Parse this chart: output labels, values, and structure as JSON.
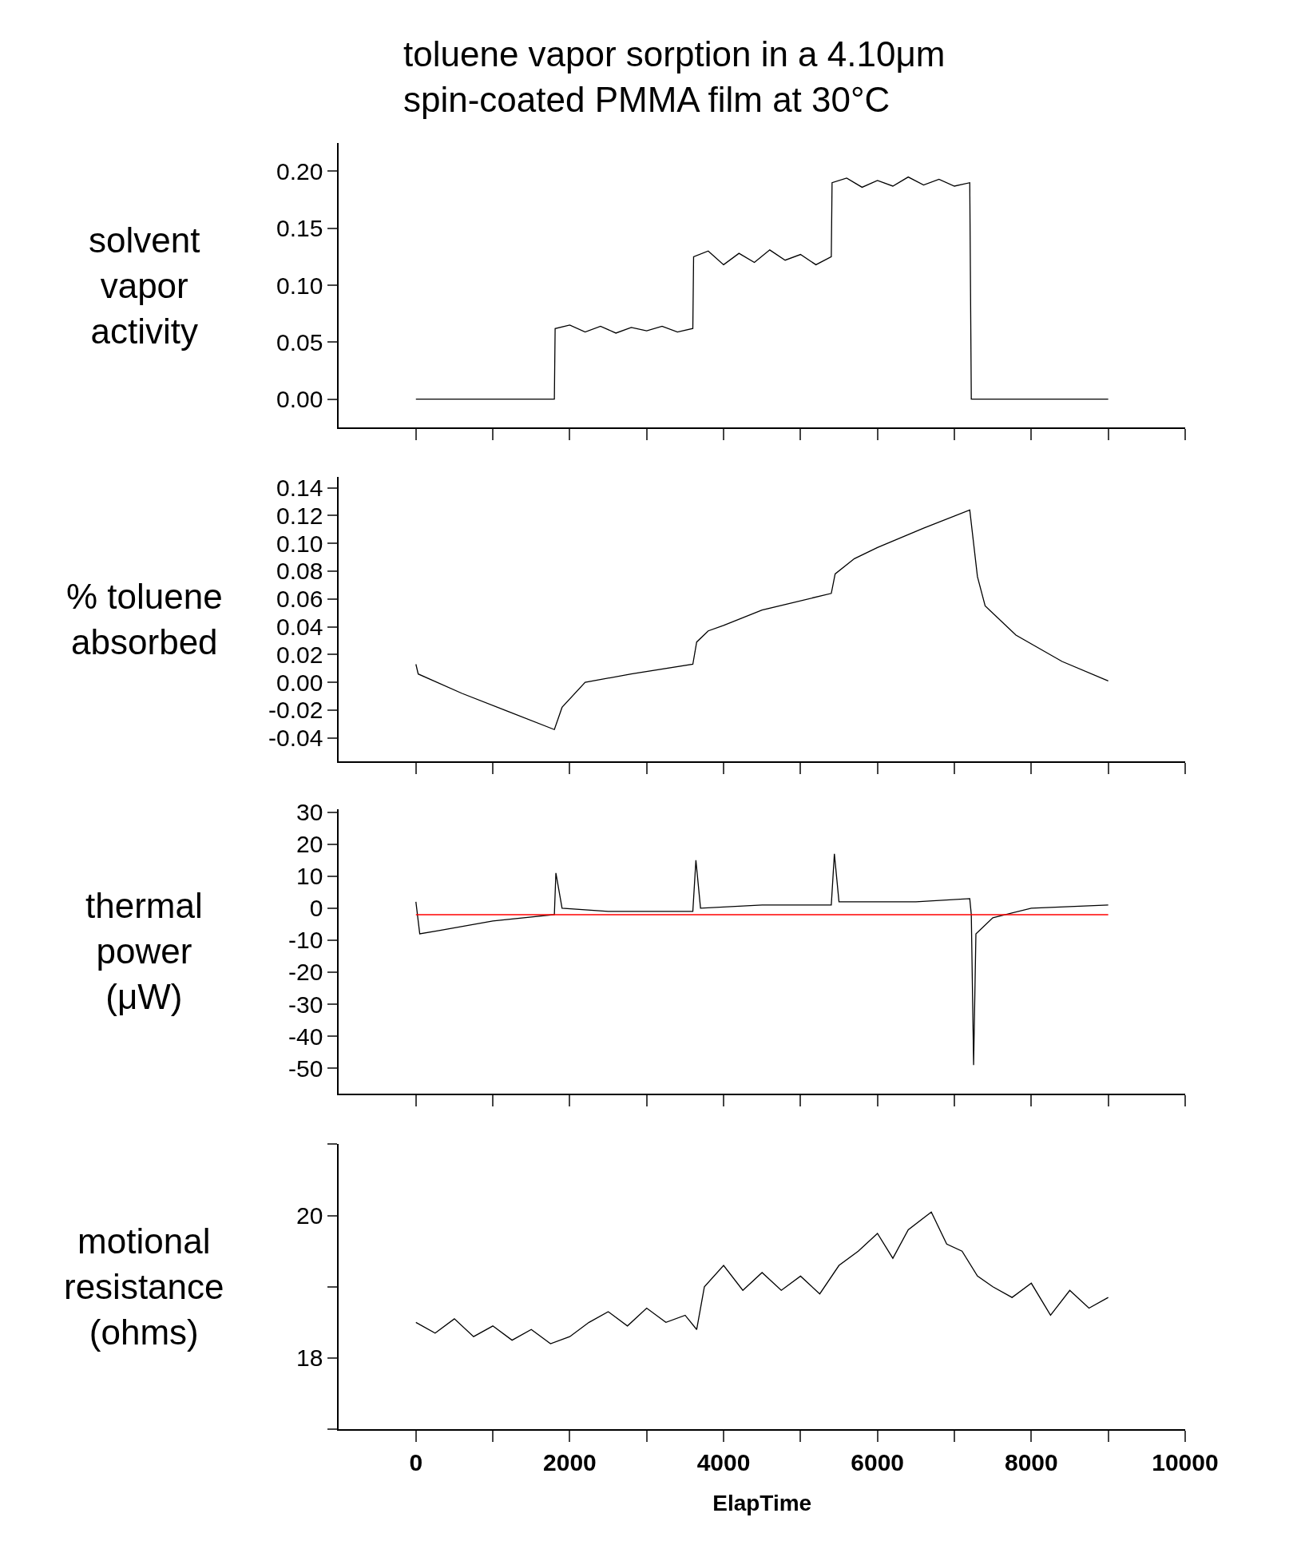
{
  "chart_data": [
    {
      "type": "line",
      "title": "toluene vapor sorption in a 4.10μm\nspin-coated PMMA film at 30°C",
      "ylabel": "solvent\nvapor\nactivity",
      "tick_labels": "y",
      "marker": "none",
      "line_style": "solid",
      "xlim": [
        -1000,
        10000
      ],
      "xticks": [
        {
          "value": 0,
          "label": null
        },
        {
          "value": 1000,
          "label": null
        },
        {
          "value": 2000,
          "label": null
        },
        {
          "value": 3000,
          "label": null
        },
        {
          "value": 4000,
          "label": null
        },
        {
          "value": 5000,
          "label": null
        },
        {
          "value": 6000,
          "label": null
        },
        {
          "value": 7000,
          "label": null
        },
        {
          "value": 8000,
          "label": null
        },
        {
          "value": 9000,
          "label": null
        },
        {
          "value": 10000,
          "label": null
        }
      ],
      "ylim": [
        -0.025,
        0.225
      ],
      "yticks": [
        {
          "value": 0,
          "label": "0.00"
        },
        {
          "value": 0.05,
          "label": "0.05"
        },
        {
          "value": 0.1,
          "label": "0.10"
        },
        {
          "value": 0.15,
          "label": "0.15"
        },
        {
          "value": 0.2,
          "label": "0.20"
        }
      ],
      "series": [
        {
          "color": "#000000",
          "x": [
            0,
            1800,
            1810,
            2000,
            2200,
            2400,
            2600,
            2800,
            3000,
            3200,
            3400,
            3600,
            3610,
            3800,
            4000,
            4200,
            4400,
            4600,
            4800,
            5000,
            5200,
            5400,
            5410,
            5600,
            5800,
            6000,
            6200,
            6400,
            6600,
            6800,
            7000,
            7200,
            7220,
            9000
          ],
          "values": [
            0,
            0,
            0.062,
            0.065,
            0.059,
            0.064,
            0.058,
            0.063,
            0.06,
            0.064,
            0.059,
            0.062,
            0.125,
            0.13,
            0.118,
            0.128,
            0.12,
            0.131,
            0.122,
            0.127,
            0.118,
            0.125,
            0.19,
            0.194,
            0.186,
            0.192,
            0.187,
            0.195,
            0.188,
            0.193,
            0.187,
            0.19,
            0,
            0
          ]
        }
      ]
    },
    {
      "type": "line",
      "ylabel": "% toluene\nabsorbed",
      "tick_labels": "y",
      "marker": "none",
      "line_style": "solid",
      "xlim": [
        -1000,
        10000
      ],
      "xticks": [
        {
          "value": 0,
          "label": null
        },
        {
          "value": 1000,
          "label": null
        },
        {
          "value": 2000,
          "label": null
        },
        {
          "value": 3000,
          "label": null
        },
        {
          "value": 4000,
          "label": null
        },
        {
          "value": 5000,
          "label": null
        },
        {
          "value": 6000,
          "label": null
        },
        {
          "value": 7000,
          "label": null
        },
        {
          "value": 8000,
          "label": null
        },
        {
          "value": 9000,
          "label": null
        },
        {
          "value": 10000,
          "label": null
        }
      ],
      "ylim": [
        -0.057,
        0.148
      ],
      "yticks": [
        {
          "value": -0.04,
          "label": "-0.04"
        },
        {
          "value": -0.02,
          "label": "-0.02"
        },
        {
          "value": 0,
          "label": "0.00"
        },
        {
          "value": 0.02,
          "label": "0.02"
        },
        {
          "value": 0.04,
          "label": "0.04"
        },
        {
          "value": 0.06,
          "label": "0.06"
        },
        {
          "value": 0.08,
          "label": "0.08"
        },
        {
          "value": 0.1,
          "label": "0.10"
        },
        {
          "value": 0.12,
          "label": "0.12"
        },
        {
          "value": 0.14,
          "label": "0.14"
        }
      ],
      "series": [
        {
          "color": "#000000",
          "x": [
            0,
            30,
            600,
            1200,
            1800,
            1900,
            2200,
            2800,
            3600,
            3650,
            3800,
            4000,
            4500,
            5400,
            5450,
            5700,
            6000,
            6600,
            7200,
            7300,
            7400,
            7800,
            8400,
            9000
          ],
          "values": [
            0.013,
            0.006,
            -0.008,
            -0.021,
            -0.034,
            -0.018,
            0,
            0.006,
            0.013,
            0.029,
            0.037,
            0.041,
            0.052,
            0.064,
            0.078,
            0.089,
            0.097,
            0.111,
            0.124,
            0.076,
            0.055,
            0.034,
            0.015,
            0.001
          ]
        }
      ]
    },
    {
      "type": "line",
      "ylabel": "thermal\npower\n(μW)",
      "tick_labels": "y",
      "marker": "none",
      "line_style": "solid",
      "xlim": [
        -1000,
        10000
      ],
      "xticks": [
        {
          "value": 0,
          "label": null
        },
        {
          "value": 1000,
          "label": null
        },
        {
          "value": 2000,
          "label": null
        },
        {
          "value": 3000,
          "label": null
        },
        {
          "value": 4000,
          "label": null
        },
        {
          "value": 5000,
          "label": null
        },
        {
          "value": 6000,
          "label": null
        },
        {
          "value": 7000,
          "label": null
        },
        {
          "value": 8000,
          "label": null
        },
        {
          "value": 9000,
          "label": null
        },
        {
          "value": 10000,
          "label": null
        }
      ],
      "ylim": [
        -58,
        31
      ],
      "yticks": [
        -50,
        -40,
        -30,
        -20,
        -10,
        0,
        10,
        20,
        30
      ],
      "ref_lines": [
        {
          "axis": "y",
          "value": -2,
          "color": "#ff0000"
        }
      ],
      "series": [
        {
          "color": "#000000",
          "x": [
            0,
            50,
            300,
            1000,
            1800,
            1820,
            1900,
            2500,
            3600,
            3640,
            3700,
            4500,
            5400,
            5440,
            5500,
            6500,
            7200,
            7220,
            7250,
            7280,
            7500,
            8000,
            9000
          ],
          "values": [
            2,
            -8,
            -7,
            -4,
            -2,
            11,
            0,
            -1,
            -1,
            15,
            0,
            1,
            1,
            17,
            2,
            2,
            3,
            -2,
            -49,
            -8,
            -3,
            0,
            1
          ]
        }
      ]
    },
    {
      "type": "line",
      "ylabel": "motional\nresistance\n(ohms)",
      "xlabel": "ElapTime",
      "marker": "none",
      "line_style": "solid",
      "xlim": [
        -1000,
        10000
      ],
      "xticks": [
        0,
        {
          "value": 1000,
          "label": null
        },
        2000,
        {
          "value": 3000,
          "label": null
        },
        4000,
        {
          "value": 5000,
          "label": null
        },
        6000,
        {
          "value": 7000,
          "label": null
        },
        8000,
        {
          "value": 9000,
          "label": null
        },
        10000
      ],
      "ylim": [
        17,
        21
      ],
      "yticks": [
        {
          "value": 17,
          "label": null
        },
        18,
        {
          "value": 19,
          "label": null
        },
        20,
        {
          "value": 21,
          "label": null
        }
      ],
      "series": [
        {
          "color": "#000000",
          "x": [
            0,
            250,
            500,
            750,
            1000,
            1250,
            1500,
            1750,
            2000,
            2250,
            2500,
            2750,
            3000,
            3250,
            3500,
            3650,
            3750,
            4000,
            4250,
            4500,
            4750,
            5000,
            5250,
            5500,
            5750,
            6000,
            6200,
            6400,
            6700,
            6900,
            7100,
            7300,
            7500,
            7750,
            8000,
            8250,
            8500,
            8750,
            9000
          ],
          "values": [
            18.5,
            18.35,
            18.55,
            18.3,
            18.45,
            18.25,
            18.4,
            18.2,
            18.3,
            18.5,
            18.65,
            18.45,
            18.7,
            18.5,
            18.6,
            18.4,
            19.0,
            19.3,
            18.95,
            19.2,
            18.95,
            19.15,
            18.9,
            19.3,
            19.5,
            19.75,
            19.4,
            19.8,
            20.05,
            19.6,
            19.5,
            19.15,
            19.0,
            18.85,
            19.05,
            18.6,
            18.95,
            18.7,
            18.85
          ]
        }
      ]
    }
  ]
}
